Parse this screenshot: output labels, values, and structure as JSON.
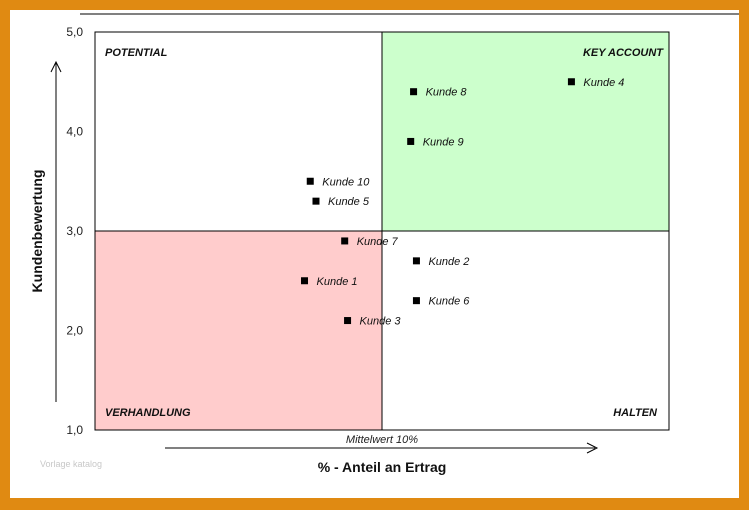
{
  "chart_data": {
    "type": "scatter",
    "title": "",
    "xlabel": "% - Anteil an Ertrag",
    "ylabel": "Kundenbewertung",
    "ylim": [
      1,
      5
    ],
    "yticks": [
      "1,0",
      "2,0",
      "3,0",
      "4,0",
      "5,0"
    ],
    "y_threshold": 3.0,
    "x_mean_label": "Mittelwert 10%",
    "grid": false,
    "quadrants": {
      "top_left": {
        "label": "POTENTIAL",
        "color": "#ffffff"
      },
      "top_right": {
        "label": "KEY ACCOUNT",
        "color": "#ccffcc"
      },
      "bottom_left": {
        "label": "VERHANDLUNG",
        "color": "#ffcccc"
      },
      "bottom_right": {
        "label": "HALTEN",
        "color": "#ffffff"
      }
    },
    "points": [
      {
        "label": "Kunde 1",
        "x": 7.3,
        "y": 2.5
      },
      {
        "label": "Kunde 2",
        "x": 11.2,
        "y": 2.7
      },
      {
        "label": "Kunde 3",
        "x": 8.8,
        "y": 2.1
      },
      {
        "label": "Kunde 4",
        "x": 16.6,
        "y": 4.5
      },
      {
        "label": "Kunde 5",
        "x": 7.7,
        "y": 3.3
      },
      {
        "label": "Kunde 6",
        "x": 11.2,
        "y": 2.3
      },
      {
        "label": "Kunde 7",
        "x": 8.7,
        "y": 2.9
      },
      {
        "label": "Kunde 8",
        "x": 11.1,
        "y": 4.4
      },
      {
        "label": "Kunde 9",
        "x": 11.0,
        "y": 3.9
      },
      {
        "label": "Kunde 10",
        "x": 7.5,
        "y": 3.5
      }
    ],
    "x_mean": 10,
    "xlim": [
      0,
      20
    ]
  },
  "watermark": "Vorlage katalog",
  "colors": {
    "frame": "#e08a12",
    "marker": "#000000"
  }
}
